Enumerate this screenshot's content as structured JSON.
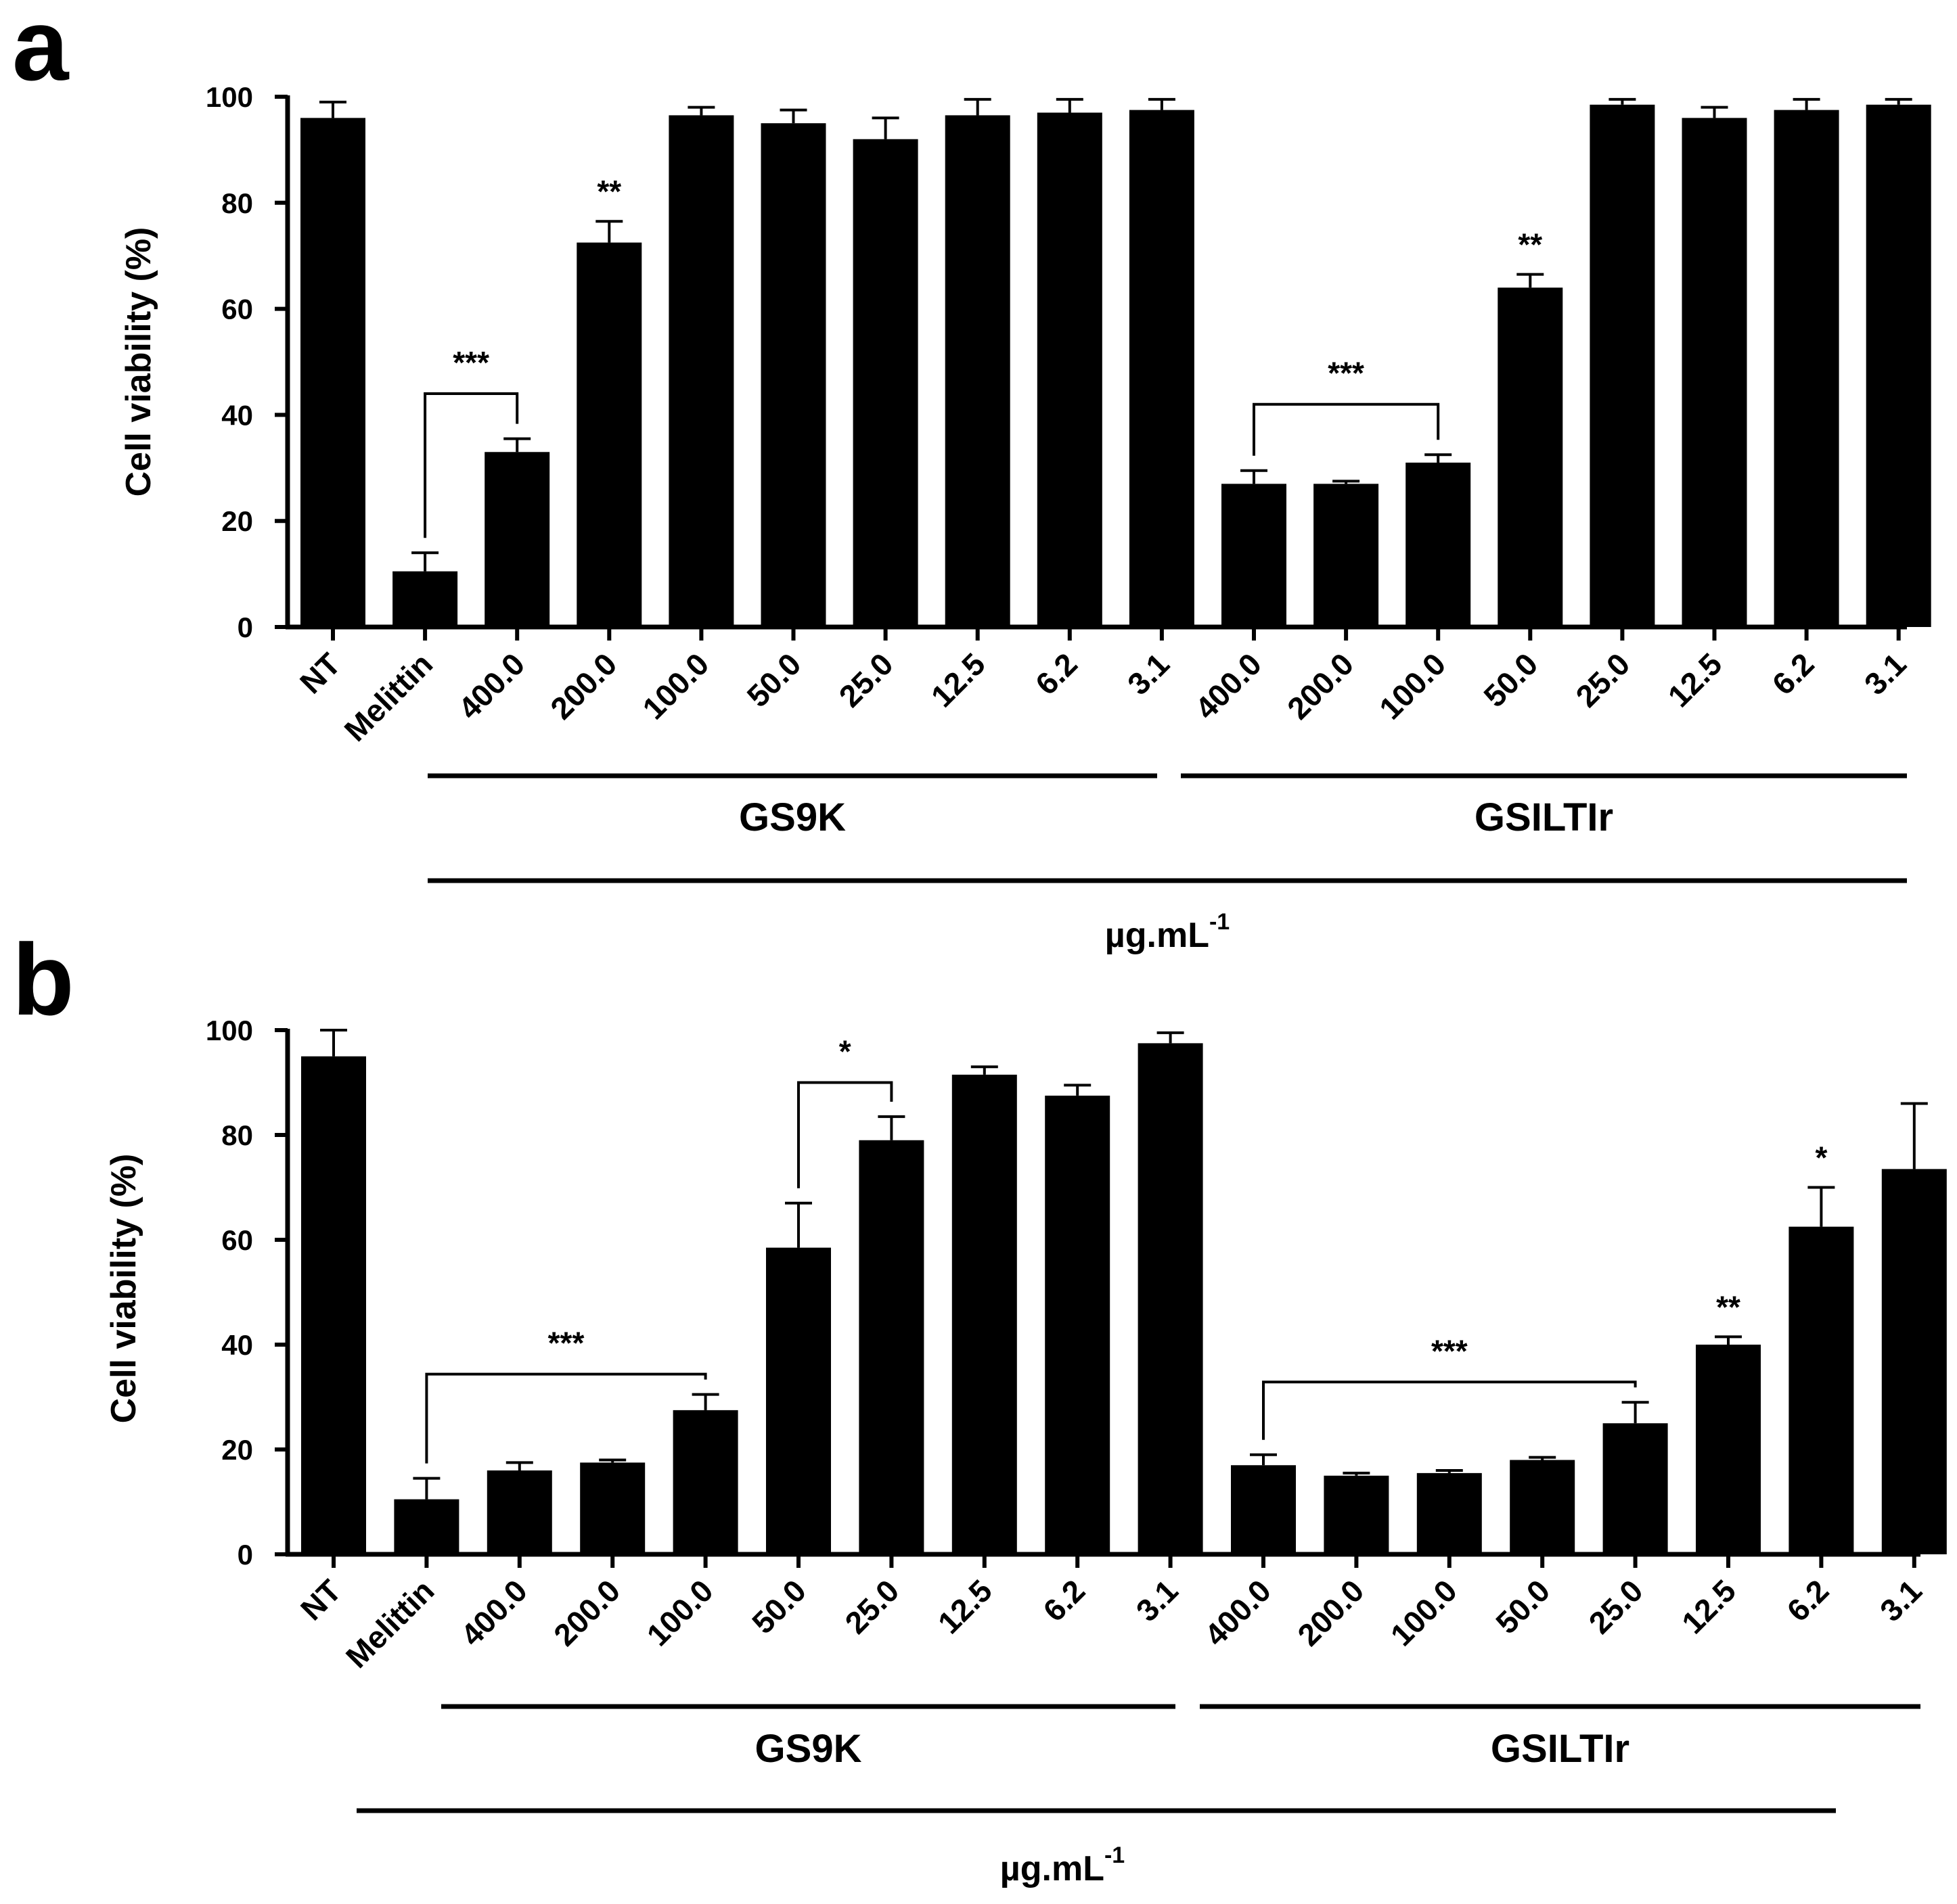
{
  "chart_data": [
    {
      "type": "bar",
      "panel": "a",
      "title": "",
      "xlabel": "µg.mL-1",
      "unit_main": "µg.mL",
      "unit_sup": "-1",
      "ylabel": "Cell viability (%)",
      "ylim": [
        0,
        100
      ],
      "yticks": [
        "0",
        "20",
        "40",
        "60",
        "80",
        "100"
      ],
      "categories": [
        "NT",
        "Melittin",
        "400.0",
        "200.0",
        "100.0",
        "50.0",
        "25.0",
        "12.5",
        "6.2",
        "3.1",
        "400.0",
        "200.0",
        "100.0",
        "50.0",
        "25.0",
        "12.5",
        "6.2",
        "3.1"
      ],
      "values": [
        96,
        10.5,
        33,
        72.5,
        96.5,
        95,
        92,
        96.5,
        97,
        97.5,
        27,
        27,
        31,
        64,
        98.5,
        96,
        97.5,
        98.5
      ],
      "errors": [
        3,
        3.5,
        2.5,
        4,
        1.5,
        2.5,
        4,
        3,
        2.5,
        2,
        2.5,
        0.5,
        1.5,
        2.5,
        1,
        2,
        2,
        1
      ],
      "groups": [
        {
          "label": "GS9K",
          "from": 2,
          "to": 9
        },
        {
          "label": "GSILTIr",
          "from": 10,
          "to": 17
        }
      ],
      "significance": [
        {
          "text": "***",
          "from": 1,
          "to": 2
        },
        {
          "text": "**",
          "at": 3
        },
        {
          "text": "***",
          "from": 10,
          "to": 12
        },
        {
          "text": "**",
          "at": 13
        }
      ]
    },
    {
      "type": "bar",
      "panel": "b",
      "title": "",
      "xlabel": "µg.mL-1",
      "unit_main": "µg.mL",
      "unit_sup": "-1",
      "ylabel": "Cell viability (%)",
      "ylim": [
        0,
        100
      ],
      "yticks": [
        "0",
        "20",
        "40",
        "60",
        "80",
        "100"
      ],
      "categories": [
        "NT",
        "Melittin",
        "400.0",
        "200.0",
        "100.0",
        "50.0",
        "25.0",
        "12.5",
        "6.2",
        "3.1",
        "400.0",
        "200.0",
        "100.0",
        "50.0",
        "25.0",
        "12.5",
        "6.2",
        "3.1"
      ],
      "values": [
        95,
        10.5,
        16,
        17.5,
        27.5,
        58.5,
        79,
        91.5,
        87.5,
        97.5,
        17,
        15,
        15.5,
        18,
        25,
        40,
        62.5,
        73.5
      ],
      "errors": [
        5,
        4,
        1.5,
        0.5,
        3,
        8.5,
        4.5,
        1.5,
        2,
        2,
        2,
        0.5,
        0.5,
        0.5,
        4,
        1.5,
        7.5,
        12.5
      ],
      "groups": [
        {
          "label": "GS9K",
          "from": 2,
          "to": 9
        },
        {
          "label": "GSILTIr",
          "from": 10,
          "to": 17
        }
      ],
      "significance": [
        {
          "text": "***",
          "from": 1,
          "to": 4
        },
        {
          "text": "*",
          "from": 5,
          "to": 6
        },
        {
          "text": "***",
          "from": 10,
          "to": 14
        },
        {
          "text": "**",
          "at": 15
        },
        {
          "text": "*",
          "at": 16
        }
      ]
    }
  ]
}
